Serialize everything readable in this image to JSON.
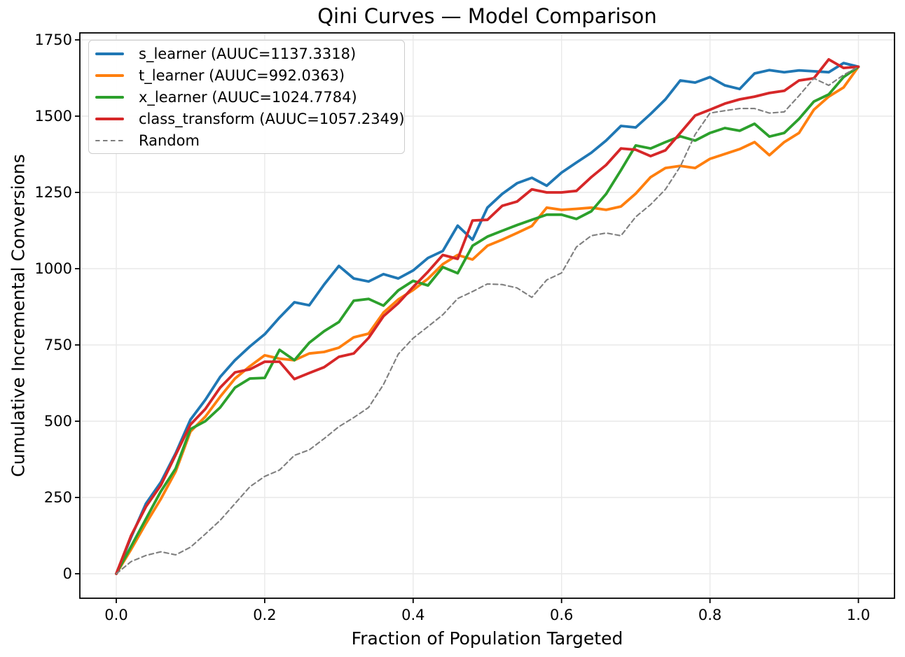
{
  "chart_data": {
    "type": "line",
    "title": "Qini Curves — Model Comparison",
    "xlabel": "Fraction of Population Targeted",
    "ylabel": "Cumulative Incremental Conversions",
    "xticks": [
      "0.0",
      "0.2",
      "0.4",
      "0.6",
      "0.8",
      "1.0"
    ],
    "yticks": [
      "0",
      "250",
      "500",
      "750",
      "1000",
      "1250",
      "1500",
      "1750"
    ],
    "xlim": [
      -0.047,
      1.048
    ],
    "ylim": [
      -80,
      1773
    ],
    "grid": true,
    "legend_loc": "upper left",
    "x": [
      0,
      0.02,
      0.04,
      0.06,
      0.08,
      0.1,
      0.12,
      0.14,
      0.16,
      0.18,
      0.2,
      0.22,
      0.24,
      0.26,
      0.28,
      0.3,
      0.32,
      0.34,
      0.36,
      0.38,
      0.4,
      0.42,
      0.44,
      0.46,
      0.48,
      0.5,
      0.52,
      0.54,
      0.56,
      0.58,
      0.6,
      0.62,
      0.64,
      0.66,
      0.68,
      0.7,
      0.72,
      0.74,
      0.76,
      0.78,
      0.8,
      0.82,
      0.84,
      0.86,
      0.88,
      0.9,
      0.92,
      0.94,
      0.96,
      0.98,
      1
    ],
    "series": [
      {
        "name": "s_learner",
        "label": "s_learner (AUUC=1137.3318)",
        "auuc": 1137.3318,
        "color": "#1f77b4",
        "line_style": "solid",
        "values": [
          0,
          120,
          230,
          300,
          395,
          505,
          570,
          645,
          700,
          745,
          785,
          840,
          890,
          880,
          948,
          1009,
          968,
          958,
          982,
          968,
          994,
          1035,
          1058,
          1141,
          1095,
          1200,
          1245,
          1280,
          1298,
          1272,
          1315,
          1348,
          1380,
          1420,
          1468,
          1463,
          1507,
          1555,
          1617,
          1610,
          1628,
          1601,
          1589,
          1640,
          1651,
          1644,
          1650,
          1647,
          1644,
          1674,
          1662
        ]
      },
      {
        "name": "t_learner",
        "label": "t_learner (AUUC=992.0363)",
        "auuc": 992.0363,
        "color": "#ff7f0e",
        "line_style": "solid",
        "values": [
          0,
          80,
          165,
          245,
          335,
          466,
          515,
          580,
          640,
          680,
          716,
          705,
          700,
          722,
          727,
          741,
          775,
          787,
          856,
          899,
          930,
          967,
          1015,
          1045,
          1030,
          1075,
          1095,
          1117,
          1140,
          1200,
          1193,
          1196,
          1200,
          1193,
          1204,
          1246,
          1300,
          1330,
          1337,
          1330,
          1360,
          1376,
          1392,
          1415,
          1372,
          1415,
          1445,
          1521,
          1564,
          1594,
          1662
        ]
      },
      {
        "name": "x_learner",
        "label": "x_learner (AUUC=1024.7784)",
        "auuc": 1024.7784,
        "color": "#2ca02c",
        "line_style": "solid",
        "values": [
          0,
          90,
          180,
          270,
          345,
          474,
          500,
          545,
          610,
          640,
          642,
          734,
          700,
          757,
          795,
          825,
          895,
          901,
          879,
          929,
          960,
          945,
          1005,
          985,
          1075,
          1105,
          1124,
          1143,
          1160,
          1177,
          1177,
          1163,
          1188,
          1245,
          1323,
          1404,
          1394,
          1415,
          1434,
          1420,
          1445,
          1461,
          1452,
          1475,
          1433,
          1445,
          1491,
          1548,
          1571,
          1628,
          1662
        ]
      },
      {
        "name": "class_transform",
        "label": "class_transform (AUUC=1057.2349)",
        "auuc": 1057.2349,
        "color": "#d62728",
        "line_style": "solid",
        "values": [
          0,
          125,
          220,
          290,
          390,
          489,
          540,
          610,
          660,
          670,
          695,
          695,
          638,
          658,
          677,
          711,
          722,
          773,
          844,
          887,
          940,
          990,
          1045,
          1032,
          1158,
          1160,
          1206,
          1220,
          1260,
          1250,
          1250,
          1255,
          1300,
          1340,
          1394,
          1390,
          1369,
          1388,
          1445,
          1502,
          1521,
          1541,
          1555,
          1564,
          1576,
          1583,
          1617,
          1624,
          1686,
          1658,
          1662
        ]
      },
      {
        "name": "random",
        "label": "Random",
        "color": "#7f7f7f",
        "line_style": "dashed",
        "values": [
          0,
          40,
          60,
          72,
          62,
          87,
          130,
          175,
          230,
          285,
          319,
          340,
          388,
          406,
          443,
          482,
          512,
          545,
          620,
          720,
          772,
          810,
          849,
          902,
          925,
          950,
          948,
          937,
          906,
          963,
          986,
          1071,
          1108,
          1117,
          1108,
          1170,
          1210,
          1260,
          1335,
          1440,
          1510,
          1518,
          1525,
          1525,
          1510,
          1514,
          1567,
          1624,
          1601,
          1635,
          1662
        ]
      }
    ]
  },
  "style": {
    "grid_color": "#e9e9e9",
    "spine_color": "#000000",
    "background": "#ffffff",
    "series_line_width": 3.8,
    "random_line_width": 2.1
  }
}
